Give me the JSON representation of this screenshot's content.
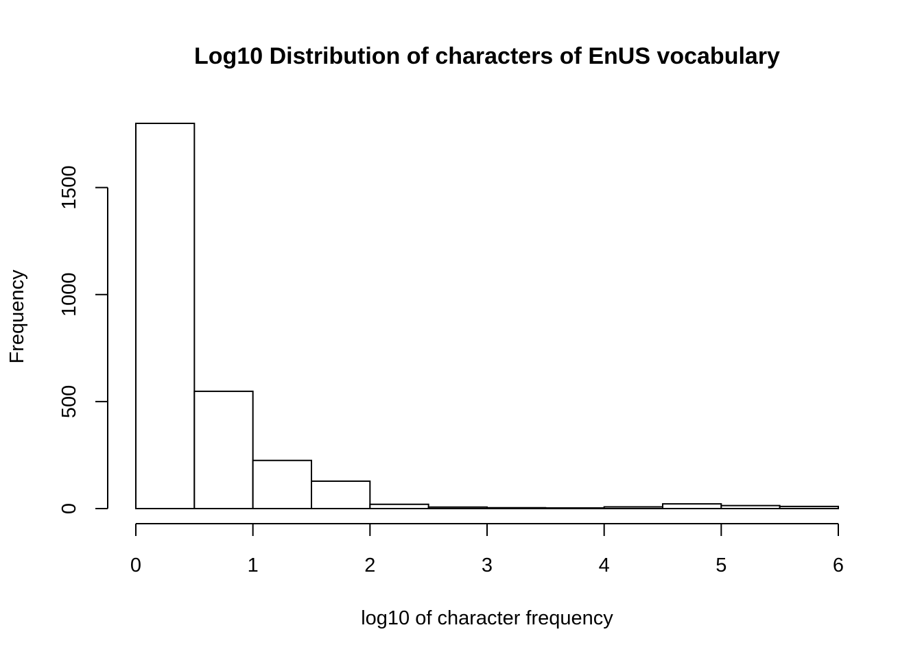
{
  "chart_data": {
    "type": "bar",
    "title": "Log10 Distribution of characters of EnUS vocabulary",
    "xlabel": "log10 of character frequency",
    "ylabel": "Frequency",
    "bin_edges": [
      0,
      0.5,
      1,
      1.5,
      2,
      2.5,
      3,
      3.5,
      4,
      4.5,
      5,
      5.5,
      6
    ],
    "values": [
      1800,
      548,
      225,
      128,
      20,
      7,
      4,
      3,
      8,
      22,
      14,
      10
    ],
    "xlim": [
      0,
      6
    ],
    "ylim": [
      0,
      1800
    ],
    "x_ticks": [
      0,
      1,
      2,
      3,
      4,
      5,
      6
    ],
    "x_tick_labels": [
      "0",
      "1",
      "2",
      "3",
      "4",
      "5",
      "6"
    ],
    "y_ticks": [
      0,
      500,
      1000,
      1500
    ],
    "y_tick_labels": [
      "0",
      "500",
      "1000",
      "1500"
    ],
    "grid": false,
    "legend": "none",
    "colors": {
      "bar_fill": "#ffffff",
      "bar_stroke": "#000000",
      "background": "#ffffff"
    }
  }
}
